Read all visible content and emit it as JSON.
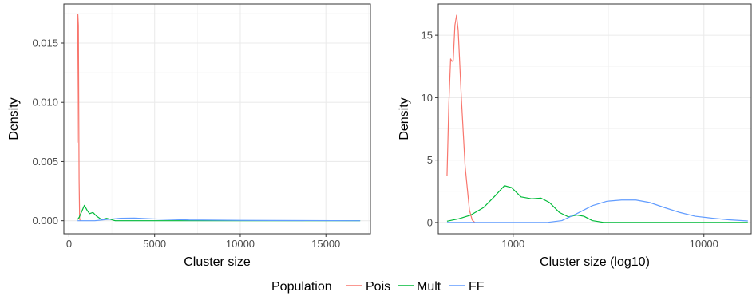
{
  "chart_data": [
    {
      "type": "line",
      "xlabel": "Cluster size",
      "ylabel": "Density",
      "xlim": [
        -300,
        17600
      ],
      "ylim": [
        -0.0011,
        0.0183
      ],
      "x_scale": "linear",
      "x_ticks": [
        0,
        5000,
        10000,
        15000
      ],
      "x_tick_labels": [
        "0",
        "5000",
        "10000",
        "15000"
      ],
      "y_ticks": [
        0.0,
        0.005,
        0.01,
        0.015
      ],
      "y_tick_labels": [
        "0.000",
        "0.005",
        "0.010",
        "0.015"
      ],
      "grid": true,
      "series": [
        {
          "name": "Pois",
          "points": [
            [
              480,
              0.0066
            ],
            [
              500,
              0.0145
            ],
            [
              520,
              0.0174
            ],
            [
              550,
              0.0165
            ],
            [
              570,
              0.0095
            ],
            [
              590,
              0.0035
            ],
            [
              620,
              0.0002
            ],
            [
              650,
              0.0
            ]
          ]
        },
        {
          "name": "Mult",
          "points": [
            [
              500,
              0.0001
            ],
            [
              600,
              0.0003
            ],
            [
              750,
              0.0008
            ],
            [
              900,
              0.0013
            ],
            [
              1050,
              0.0009
            ],
            [
              1200,
              0.0006
            ],
            [
              1400,
              0.0007
            ],
            [
              1600,
              0.0004
            ],
            [
              1900,
              0.0001
            ],
            [
              2200,
              0.0002
            ],
            [
              2450,
              0.0001
            ],
            [
              2700,
              0.0
            ],
            [
              17000,
              0.0
            ]
          ]
        },
        {
          "name": "FF",
          "points": [
            [
              500,
              0.0
            ],
            [
              1500,
              0.0
            ],
            [
              2200,
              0.0001
            ],
            [
              3000,
              0.00021
            ],
            [
              3800,
              0.00022
            ],
            [
              5000,
              0.00015
            ],
            [
              7000,
              6e-05
            ],
            [
              10000,
              3e-05
            ],
            [
              17000,
              0.0
            ]
          ]
        }
      ]
    },
    {
      "type": "line",
      "xlabel": "Cluster size (log10)",
      "ylabel": "Density",
      "xlim": [
        405,
        17700
      ],
      "ylim": [
        -0.9,
        17.5
      ],
      "x_scale": "log10",
      "x_ticks": [
        1000,
        10000
      ],
      "x_tick_labels": [
        "1000",
        "10000"
      ],
      "y_ticks": [
        0,
        5,
        10,
        15
      ],
      "y_tick_labels": [
        "0",
        "5",
        "10",
        "15"
      ],
      "grid": true,
      "series": [
        {
          "name": "Pois",
          "points": [
            [
              450,
              3.7
            ],
            [
              460,
              9.5
            ],
            [
              470,
              13.1
            ],
            [
              478,
              12.9
            ],
            [
              485,
              13.0
            ],
            [
              495,
              15.8
            ],
            [
              505,
              16.6
            ],
            [
              515,
              15.4
            ],
            [
              535,
              10.0
            ],
            [
              560,
              4.5
            ],
            [
              590,
              1.0
            ],
            [
              610,
              0.2
            ],
            [
              630,
              0.0
            ]
          ]
        },
        {
          "name": "Mult",
          "points": [
            [
              450,
              0.1
            ],
            [
              520,
              0.3
            ],
            [
              600,
              0.6
            ],
            [
              700,
              1.2
            ],
            [
              800,
              2.1
            ],
            [
              900,
              2.95
            ],
            [
              980,
              2.8
            ],
            [
              1100,
              2.05
            ],
            [
              1250,
              1.9
            ],
            [
              1400,
              1.95
            ],
            [
              1550,
              1.6
            ],
            [
              1750,
              0.8
            ],
            [
              1950,
              0.45
            ],
            [
              2150,
              0.6
            ],
            [
              2350,
              0.5
            ],
            [
              2600,
              0.15
            ],
            [
              3000,
              0.0
            ],
            [
              17000,
              0.0
            ]
          ]
        },
        {
          "name": "FF",
          "points": [
            [
              450,
              0.0
            ],
            [
              1500,
              0.0
            ],
            [
              1800,
              0.15
            ],
            [
              2150,
              0.7
            ],
            [
              2600,
              1.35
            ],
            [
              3100,
              1.7
            ],
            [
              3700,
              1.8
            ],
            [
              4400,
              1.8
            ],
            [
              5200,
              1.6
            ],
            [
              6200,
              1.2
            ],
            [
              7500,
              0.8
            ],
            [
              9000,
              0.5
            ],
            [
              11000,
              0.35
            ],
            [
              13500,
              0.22
            ],
            [
              17000,
              0.12
            ]
          ]
        }
      ]
    }
  ],
  "legend": {
    "title": "Population",
    "items": [
      {
        "name": "Pois",
        "color": "#F8766D"
      },
      {
        "name": "Mult",
        "color": "#00BA38"
      },
      {
        "name": "FF",
        "color": "#619CFF"
      }
    ]
  }
}
